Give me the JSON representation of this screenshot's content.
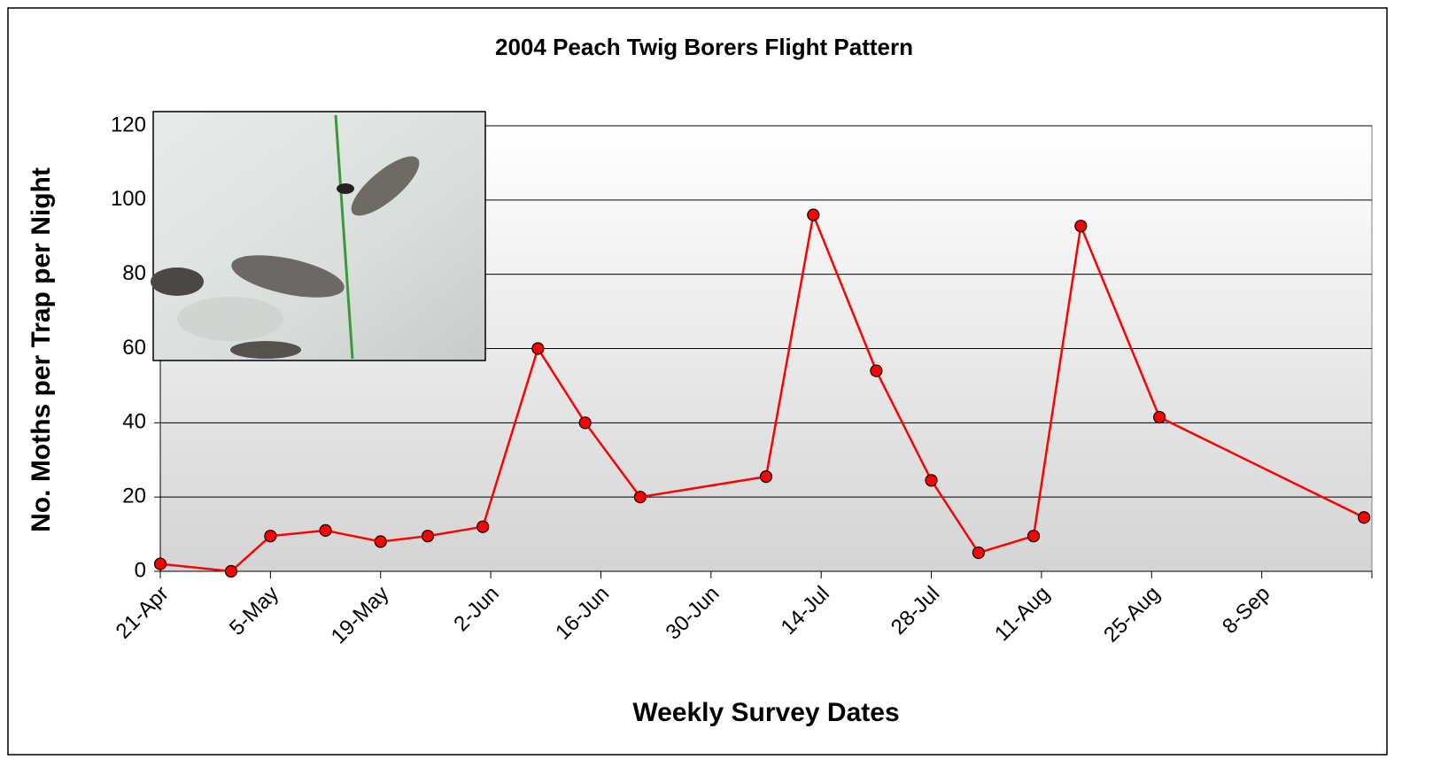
{
  "chart_data": {
    "type": "line",
    "title": "2004 Peach Twig Borers Flight Pattern",
    "x_label": "Weekly Survey Dates",
    "y_label": "No. Moths per Trap per Night",
    "x": [
      "21-Apr",
      "30-Apr",
      "5-May",
      "12-May",
      "19-May",
      "25-May",
      "1-Jun",
      "8-Jun",
      "14-Jun",
      "21-Jun",
      "7-Jul",
      "13-Jul",
      "21-Jul",
      "28-Jul",
      "3-Aug",
      "10-Aug",
      "16-Aug",
      "26-Aug",
      "21-Sep"
    ],
    "series": [
      {
        "color": "#ff0000",
        "values": [
          2,
          0,
          9.5,
          11,
          8,
          9.5,
          12,
          60,
          40,
          20,
          25.5,
          96,
          54,
          24.5,
          5,
          9.5,
          93,
          41.5,
          14.5
        ]
      }
    ],
    "xlim": [
      "21-Apr",
      "22-Sep"
    ],
    "xticks": [
      "21-Apr",
      "5-May",
      "19-May",
      "2-Jun",
      "16-Jun",
      "30-Jun",
      "14-Jul",
      "28-Jul",
      "11-Aug",
      "25-Aug",
      "8-Sep"
    ],
    "ylim": [
      0,
      120
    ],
    "yticks": [
      0,
      20,
      40,
      60,
      80,
      100,
      120
    ],
    "grid": true
  }
}
